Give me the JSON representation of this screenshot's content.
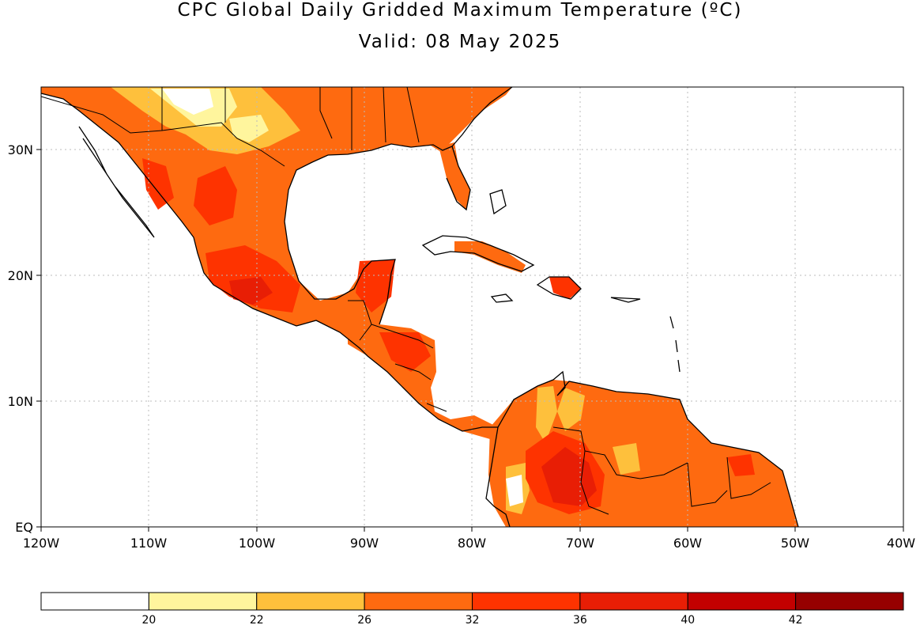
{
  "title": {
    "line1": "CPC Global Daily Gridded Maximum Temperature (ºC)",
    "line2": "Valid: 08 May 2025"
  },
  "map": {
    "region": "Central America, Caribbean and northern South America",
    "lon_range": [
      -120,
      -40
    ],
    "lat_range": [
      0,
      35
    ],
    "x_axis_labels": [
      "120W",
      "110W",
      "100W",
      "90W",
      "80W",
      "70W",
      "60W",
      "50W",
      "40W"
    ],
    "y_axis_labels": [
      "EQ",
      "10N",
      "20N",
      "30N"
    ],
    "grid": "dotted gray"
  },
  "colorbar": {
    "colors": [
      "#ffffff",
      "#fff59d",
      "#fec03c",
      "#fe6a10",
      "#fe3300",
      "#e81e05",
      "#c30000",
      "#960000"
    ],
    "tick_labels": [
      "20",
      "22",
      "26",
      "32",
      "36",
      "40",
      "42"
    ]
  }
}
